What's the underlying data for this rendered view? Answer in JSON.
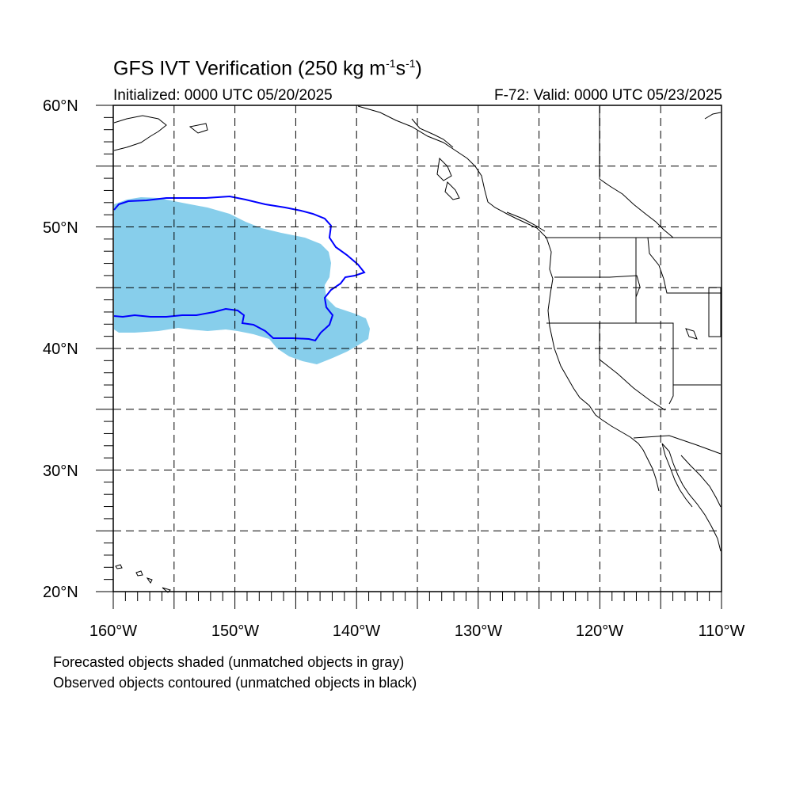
{
  "title": {
    "main": "GFS IVT Verification (250 kg m",
    "sup1": "-1",
    "mid": "s",
    "sup2": "-1",
    "end": ")"
  },
  "initialized": "Initialized: 0000 UTC 05/20/2025",
  "valid": "F-72: Valid: 0000 UTC 05/23/2025",
  "lat_labels": [
    "60°N",
    "50°N",
    "40°N",
    "30°N",
    "20°N"
  ],
  "lon_labels": [
    "160°W",
    "150°W",
    "140°W",
    "130°W",
    "120°W",
    "110°W"
  ],
  "map_extent": {
    "lon": [
      -160,
      -110
    ],
    "lat": [
      20,
      60
    ]
  },
  "grid_interval_deg": 5,
  "legend_notes": [
    "Forecasted objects shaded (unmatched objects in gray)",
    "Observed objects contoured (unmatched objects in black)"
  ],
  "colors": {
    "forecast_fill": "#87ceeb",
    "observed_contour": "#0000ff",
    "coastline": "#000000",
    "grid": "#000000"
  }
}
